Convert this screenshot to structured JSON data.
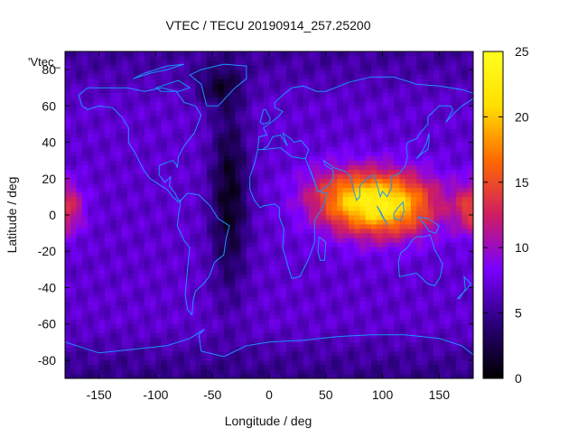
{
  "chart_data": {
    "type": "heatmap",
    "title": "VTEC / TECU 20190914_257.25200",
    "xlabel": "Longitude / deg",
    "ylabel": "Latitude / deg",
    "series_label": "'Vtec_",
    "xlim": [
      -180,
      180
    ],
    "ylim": [
      -90,
      90
    ],
    "x_ticks": [
      -150,
      -100,
      -50,
      0,
      50,
      100,
      150
    ],
    "y_ticks": [
      -80,
      -60,
      -40,
      -20,
      0,
      20,
      40,
      60,
      80
    ],
    "colorbar": {
      "range": [
        0,
        25
      ],
      "ticks": [
        0,
        5,
        10,
        15,
        20,
        25
      ],
      "palette": [
        "#000000",
        "#2a007a",
        "#7a00ff",
        "#d01e60",
        "#ff6a00",
        "#ffe000",
        "#ffff20"
      ]
    },
    "grid": false,
    "description_fields": {
      "cell_size_deg": [
        5,
        2.5
      ],
      "features": [
        {
          "name": "daytime-crest-asia",
          "lon": 100,
          "lat": 5,
          "peak": 24
        },
        {
          "name": "pacific-band",
          "lon": -175,
          "lat": 5,
          "peak": 15
        },
        {
          "name": "night-trough-atlantic",
          "lon": -35,
          "lat": 15,
          "min": 1
        }
      ]
    }
  },
  "coastline_color": "#1e90ff"
}
